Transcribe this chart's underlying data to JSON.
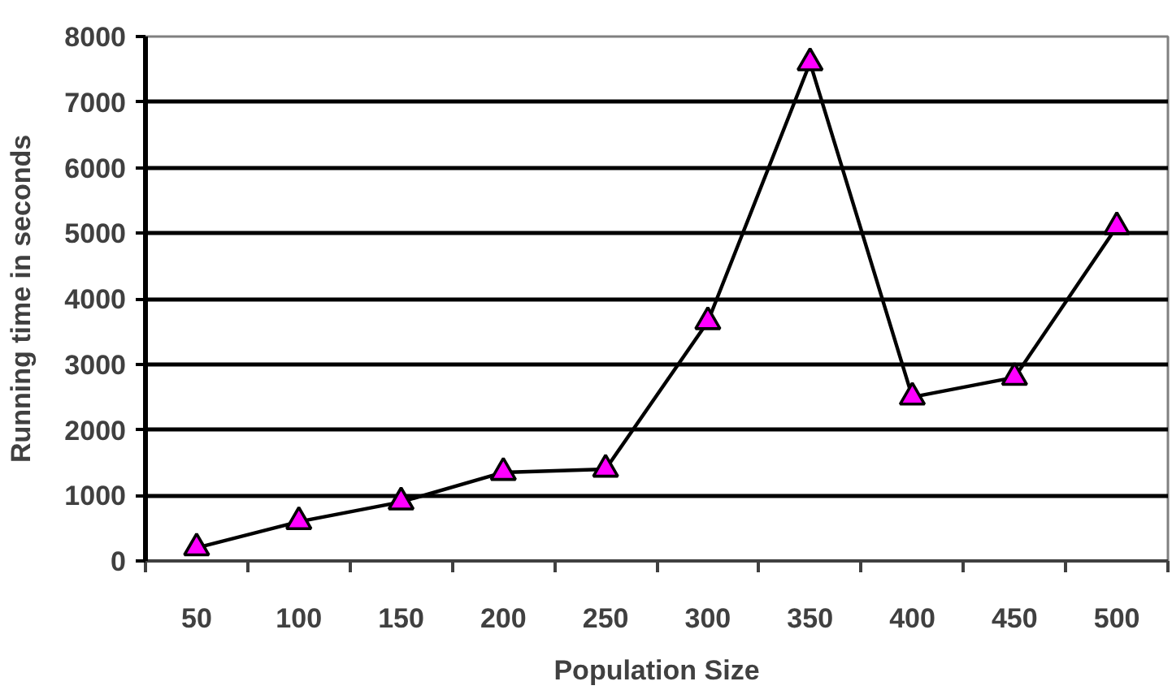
{
  "chart_data": {
    "type": "line",
    "xlabel": "Population Size",
    "ylabel": "Running time in seconds",
    "categories": [
      "50",
      "100",
      "150",
      "200",
      "250",
      "300",
      "350",
      "400",
      "450",
      "500"
    ],
    "series": [
      {
        "color": "#000000",
        "values": [
          200,
          600,
          900,
          1350,
          1400,
          3650,
          7600,
          2500,
          2800,
          5100
        ]
      }
    ],
    "ylim": [
      0,
      8000
    ],
    "yticks": [
      0,
      1000,
      2000,
      3000,
      4000,
      5000,
      6000,
      7000,
      8000
    ],
    "grid": "y",
    "marker": "triangle",
    "line_style": "solid"
  }
}
